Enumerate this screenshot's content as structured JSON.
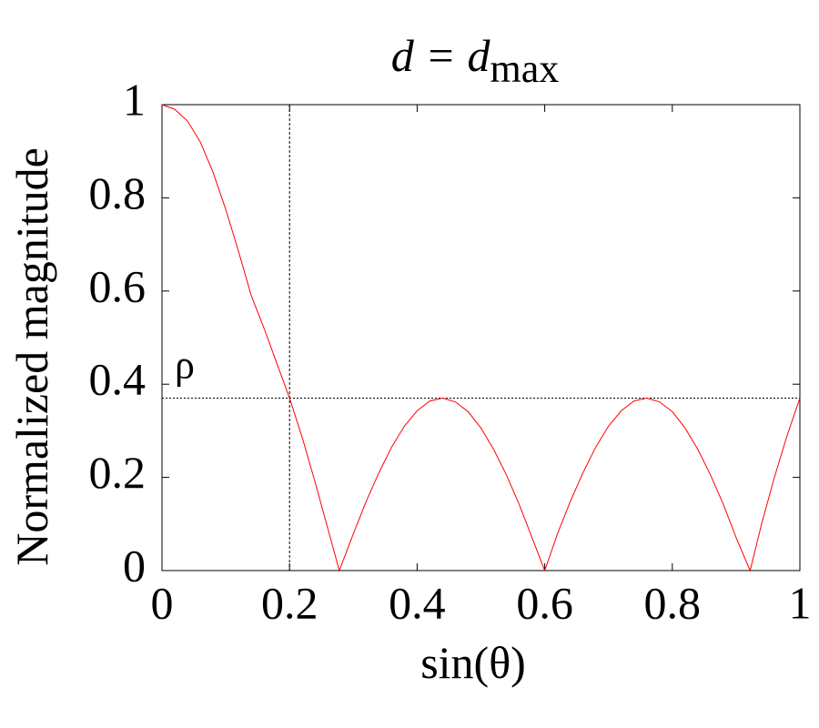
{
  "chart_data": {
    "type": "line",
    "title": "d = d",
    "title_subscript": "max",
    "x_label": "sin(θ)",
    "y_label": "Normalized magnitude",
    "x": [
      0,
      0.02,
      0.04,
      0.06,
      0.08,
      0.1,
      0.12,
      0.14,
      0.16,
      0.18,
      0.2,
      0.22,
      0.24,
      0.26,
      0.278,
      0.3,
      0.32,
      0.34,
      0.36,
      0.38,
      0.4,
      0.42,
      0.44,
      0.46,
      0.48,
      0.5,
      0.52,
      0.54,
      0.56,
      0.58,
      0.6,
      0.62,
      0.64,
      0.66,
      0.68,
      0.7,
      0.72,
      0.74,
      0.76,
      0.78,
      0.8,
      0.82,
      0.84,
      0.86,
      0.88,
      0.9,
      0.922,
      0.94,
      0.96,
      0.98,
      1
    ],
    "series": [
      {
        "name": "magnitude",
        "color": "#ff0000",
        "values": [
          1,
          0.99,
          0.965,
          0.92,
          0.855,
          0.775,
          0.685,
          0.59,
          0.52,
          0.445,
          0.37,
          0.285,
          0.19,
          0.09,
          0,
          0.079,
          0.148,
          0.21,
          0.265,
          0.31,
          0.343,
          0.364,
          0.37,
          0.362,
          0.341,
          0.306,
          0.26,
          0.205,
          0.142,
          0.071,
          0,
          0.079,
          0.148,
          0.21,
          0.265,
          0.31,
          0.343,
          0.364,
          0.37,
          0.362,
          0.341,
          0.306,
          0.26,
          0.205,
          0.142,
          0.071,
          0,
          0.1,
          0.2,
          0.29,
          0.37
        ]
      }
    ],
    "vline": 0.2,
    "hline": 0.37,
    "hline_label": "ρ",
    "xlim": [
      0,
      1
    ],
    "ylim": [
      0,
      1
    ],
    "xticks": [
      0,
      0.2,
      0.4,
      0.6,
      0.8,
      1
    ],
    "yticks": [
      0,
      0.2,
      0.4,
      0.6,
      0.8,
      1
    ],
    "grid": false
  }
}
